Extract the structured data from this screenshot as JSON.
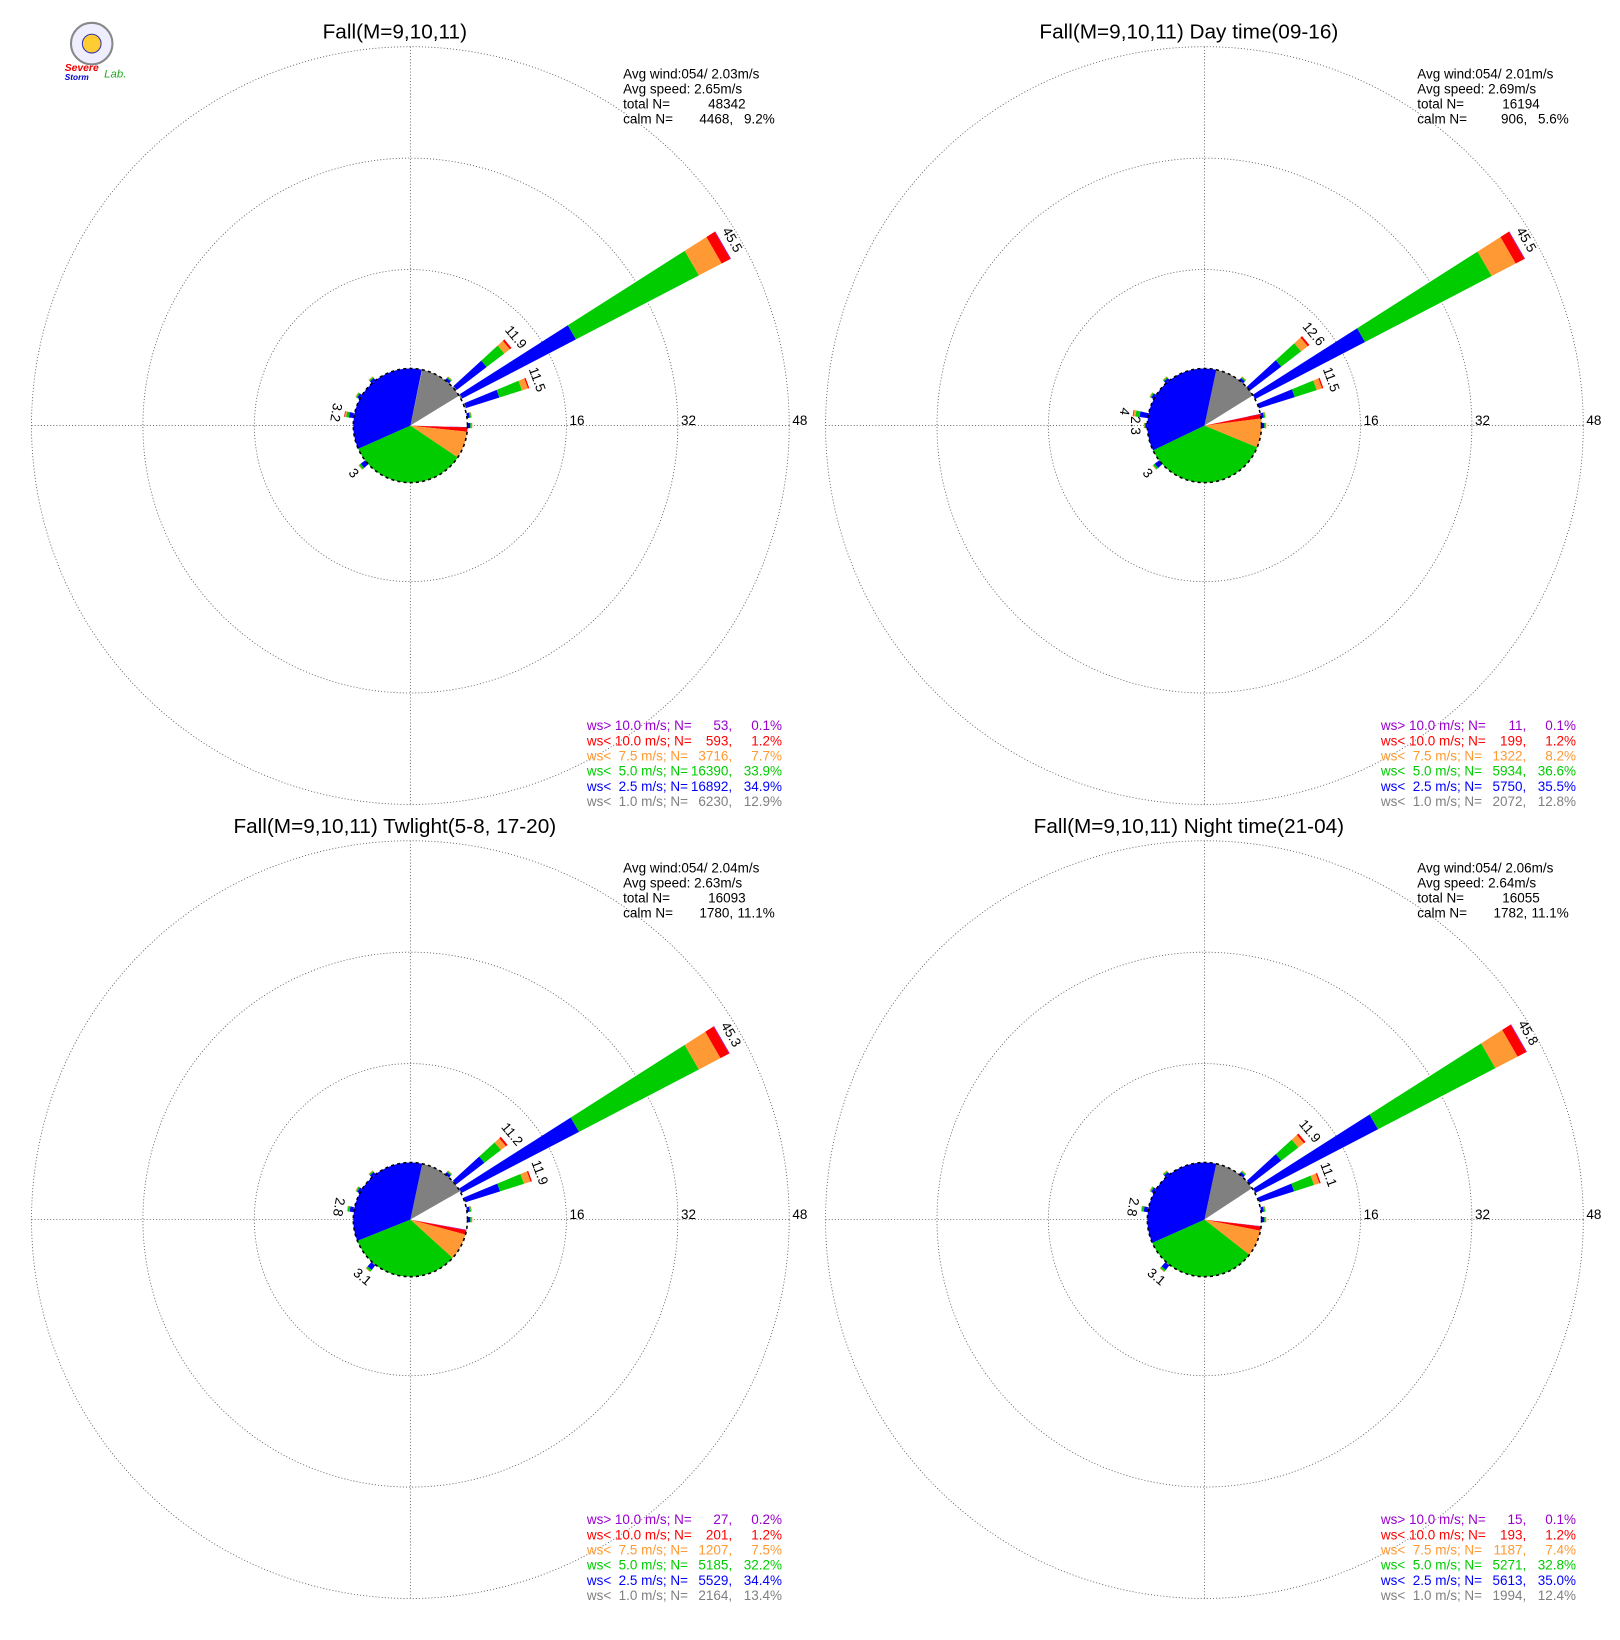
{
  "logo": {
    "line1": "Severe",
    "line2": "Storm",
    "line3": "Lab."
  },
  "chart_data": [
    {
      "type": "windrose",
      "title": "Fall(M=9,10,11)",
      "avg_wind": "Avg wind:054/ 2.03m/s",
      "avg_speed": "Avg speed: 2.65m/s",
      "total_label": "total N=",
      "total_n": 48342,
      "calm_label": "calm N=",
      "calm_n": 4468,
      "calm_n_label": "4468,",
      "calm_pct": 9.2,
      "calm_pct_label": "9.2%",
      "rlim": [
        0,
        48
      ],
      "rticks": [
        16,
        32,
        48
      ],
      "classes": [
        {
          "name": "ws> 10.0 m/s; N=",
          "color": "#9900cc",
          "n": 53,
          "n_label": "53,",
          "pct": 0.1,
          "pct_label": "0.1%"
        },
        {
          "name": "ws< 10.0 m/s; N=",
          "color": "#ff0000",
          "n": 593,
          "n_label": "593,",
          "pct": 1.2,
          "pct_label": "1.2%"
        },
        {
          "name": "ws<  7.5 m/s; N=",
          "color": "#ff9933",
          "n": 3716,
          "n_label": "3716,",
          "pct": 7.7,
          "pct_label": "7.7%"
        },
        {
          "name": "ws<  5.0 m/s; N=",
          "color": "#00cc00",
          "n": 16390,
          "n_label": "16390,",
          "pct": 33.9,
          "pct_label": "33.9%"
        },
        {
          "name": "ws<  2.5 m/s; N=",
          "color": "#0000ff",
          "n": 16892,
          "n_label": "16892,",
          "pct": 34.9,
          "pct_label": "34.9%"
        },
        {
          "name": "ws<  1.0 m/s; N=",
          "color": "#808080",
          "n": 6230,
          "n_label": "6230,",
          "pct": 12.9,
          "pct_label": "12.9%"
        }
      ],
      "petals": [
        {
          "direction": 60,
          "segments": [
            0.1,
            1.4,
            3.7,
            19.9,
            18.4,
            2.0
          ],
          "label": 45.5
        },
        {
          "direction": 50,
          "segments": [
            0,
            0.3,
            1.0,
            3.2,
            5.4,
            2.0
          ],
          "label": 11.9
        },
        {
          "direction": 70,
          "segments": [
            0,
            0.2,
            0.9,
            3.4,
            5.0,
            2.0
          ],
          "label": 11.5
        },
        {
          "direction": 280,
          "segments": [
            0,
            0.1,
            0.2,
            0.4,
            0.6,
            1.9
          ],
          "label": 3.2
        },
        {
          "direction": 230,
          "segments": [
            0,
            0,
            0.1,
            0.3,
            0.8,
            1.8
          ],
          "label": 3.0
        },
        {
          "direction": 40,
          "segments": [
            0,
            0,
            0.1,
            0.2,
            0.4,
            1.8
          ]
        },
        {
          "direction": 80,
          "segments": [
            0,
            0,
            0.1,
            0.2,
            0.4,
            1.8
          ]
        },
        {
          "direction": 90,
          "segments": [
            0,
            0,
            0.1,
            0.2,
            0.4,
            1.8
          ]
        },
        {
          "direction": 300,
          "segments": [
            0,
            0,
            0.1,
            0.2,
            0.4,
            1.8
          ]
        },
        {
          "direction": 320,
          "segments": [
            0,
            0,
            0.1,
            0.2,
            0.4,
            1.8
          ]
        }
      ]
    },
    {
      "type": "windrose",
      "title": "Fall(M=9,10,11) Day time(09-16)",
      "avg_wind": "Avg wind:054/ 2.01m/s",
      "avg_speed": "Avg speed: 2.69m/s",
      "total_label": "total N=",
      "total_n": 16194,
      "calm_label": "calm N=",
      "calm_n": 906,
      "calm_n_label": "906,",
      "calm_pct": 5.6,
      "calm_pct_label": "5.6%",
      "rlim": [
        0,
        48
      ],
      "rticks": [
        16,
        32,
        48
      ],
      "classes": [
        {
          "name": "ws> 10.0 m/s; N=",
          "color": "#9900cc",
          "n": 11,
          "n_label": "11,",
          "pct": 0.1,
          "pct_label": "0.1%"
        },
        {
          "name": "ws< 10.0 m/s; N=",
          "color": "#ff0000",
          "n": 199,
          "n_label": "199,",
          "pct": 1.2,
          "pct_label": "1.2%"
        },
        {
          "name": "ws<  7.5 m/s; N=",
          "color": "#ff9933",
          "n": 1322,
          "n_label": "1322,",
          "pct": 8.2,
          "pct_label": "8.2%"
        },
        {
          "name": "ws<  5.0 m/s; N=",
          "color": "#00cc00",
          "n": 5934,
          "n_label": "5934,",
          "pct": 36.6,
          "pct_label": "36.6%"
        },
        {
          "name": "ws<  2.5 m/s; N=",
          "color": "#0000ff",
          "n": 5750,
          "n_label": "5750,",
          "pct": 35.5,
          "pct_label": "35.5%"
        },
        {
          "name": "ws<  1.0 m/s; N=",
          "color": "#808080",
          "n": 2072,
          "n_label": "2072,",
          "pct": 12.8,
          "pct_label": "12.8%"
        }
      ],
      "petals": [
        {
          "direction": 60,
          "segments": [
            0.1,
            1.4,
            3.9,
            20.5,
            17.8,
            1.8
          ],
          "label": 45.5
        },
        {
          "direction": 50,
          "segments": [
            0,
            0.3,
            1.2,
            3.6,
            5.7,
            1.8
          ],
          "label": 12.6
        },
        {
          "direction": 70,
          "segments": [
            0,
            0.2,
            0.8,
            3.3,
            5.4,
            1.8
          ],
          "label": 11.5
        },
        {
          "direction": 280,
          "segments": [
            0,
            0.1,
            0.3,
            0.6,
            1.2,
            1.8
          ],
          "label": 4.0
        },
        {
          "direction": 270,
          "segments": [
            0,
            0,
            0.1,
            0.1,
            0.3,
            1.8
          ],
          "label": 2.3
        },
        {
          "direction": 230,
          "segments": [
            0,
            0,
            0.1,
            0.3,
            0.8,
            1.8
          ],
          "label": 3.0
        },
        {
          "direction": 40,
          "segments": [
            0,
            0,
            0.1,
            0.2,
            0.4,
            1.8
          ]
        },
        {
          "direction": 80,
          "segments": [
            0,
            0,
            0.1,
            0.2,
            0.4,
            1.8
          ]
        },
        {
          "direction": 90,
          "segments": [
            0,
            0,
            0.1,
            0.2,
            0.4,
            1.8
          ]
        },
        {
          "direction": 300,
          "segments": [
            0,
            0,
            0.1,
            0.2,
            0.4,
            1.8
          ]
        },
        {
          "direction": 320,
          "segments": [
            0,
            0,
            0.1,
            0.2,
            0.4,
            1.8
          ]
        }
      ]
    },
    {
      "type": "windrose",
      "title": "Fall(M=9,10,11) Twlight(5-8, 17-20)",
      "avg_wind": "Avg wind:054/ 2.04m/s",
      "avg_speed": "Avg speed: 2.63m/s",
      "total_label": "total N=",
      "total_n": 16093,
      "calm_label": "calm N=",
      "calm_n": 1780,
      "calm_n_label": "1780,",
      "calm_pct": 11.1,
      "calm_pct_label": "11.1%",
      "rlim": [
        0,
        48
      ],
      "rticks": [
        16,
        32,
        48
      ],
      "classes": [
        {
          "name": "ws> 10.0 m/s; N=",
          "color": "#9900cc",
          "n": 27,
          "n_label": "27,",
          "pct": 0.2,
          "pct_label": "0.2%"
        },
        {
          "name": "ws< 10.0 m/s; N=",
          "color": "#ff0000",
          "n": 201,
          "n_label": "201,",
          "pct": 1.2,
          "pct_label": "1.2%"
        },
        {
          "name": "ws<  7.5 m/s; N=",
          "color": "#ff9933",
          "n": 1207,
          "n_label": "1207,",
          "pct": 7.5,
          "pct_label": "7.5%"
        },
        {
          "name": "ws<  5.0 m/s; N=",
          "color": "#00cc00",
          "n": 5185,
          "n_label": "5185,",
          "pct": 32.2,
          "pct_label": "32.2%"
        },
        {
          "name": "ws<  2.5 m/s; N=",
          "color": "#0000ff",
          "n": 5529,
          "n_label": "5529,",
          "pct": 34.4,
          "pct_label": "34.4%"
        },
        {
          "name": "ws<  1.0 m/s; N=",
          "color": "#808080",
          "n": 2164,
          "n_label": "2164,",
          "pct": 13.4,
          "pct_label": "13.4%"
        }
      ],
      "petals": [
        {
          "direction": 60,
          "segments": [
            0.1,
            1.4,
            3.5,
            19.4,
            19.0,
            1.9
          ],
          "label": 45.3
        },
        {
          "direction": 50,
          "segments": [
            0,
            0.3,
            0.9,
            3.0,
            5.1,
            1.9
          ],
          "label": 11.2
        },
        {
          "direction": 70,
          "segments": [
            0,
            0.2,
            1.0,
            3.6,
            5.2,
            1.9
          ],
          "label": 11.9
        },
        {
          "direction": 280,
          "segments": [
            0,
            0,
            0.1,
            0.3,
            0.5,
            1.9
          ],
          "label": 2.8
        },
        {
          "direction": 220,
          "segments": [
            0,
            0,
            0.1,
            0.3,
            0.8,
            1.9
          ],
          "label": 3.1
        },
        {
          "direction": 40,
          "segments": [
            0,
            0,
            0.1,
            0.2,
            0.4,
            1.8
          ]
        },
        {
          "direction": 80,
          "segments": [
            0,
            0,
            0.1,
            0.2,
            0.4,
            1.8
          ]
        },
        {
          "direction": 90,
          "segments": [
            0,
            0,
            0.1,
            0.2,
            0.4,
            1.8
          ]
        },
        {
          "direction": 300,
          "segments": [
            0,
            0,
            0.1,
            0.2,
            0.4,
            1.8
          ]
        },
        {
          "direction": 320,
          "segments": [
            0,
            0,
            0.1,
            0.2,
            0.4,
            1.8
          ]
        }
      ]
    },
    {
      "type": "windrose",
      "title": "Fall(M=9,10,11) Night time(21-04)",
      "avg_wind": "Avg wind:054/ 2.06m/s",
      "avg_speed": "Avg speed: 2.64m/s",
      "total_label": "total N=",
      "total_n": 16055,
      "calm_label": "calm N=",
      "calm_n": 1782,
      "calm_n_label": "1782,",
      "calm_pct": 11.1,
      "calm_pct_label": "11.1%",
      "rlim": [
        0,
        48
      ],
      "rticks": [
        16,
        32,
        48
      ],
      "classes": [
        {
          "name": "ws> 10.0 m/s; N=",
          "color": "#9900cc",
          "n": 15,
          "n_label": "15,",
          "pct": 0.1,
          "pct_label": "0.1%"
        },
        {
          "name": "ws< 10.0 m/s; N=",
          "color": "#ff0000",
          "n": 193,
          "n_label": "193,",
          "pct": 1.2,
          "pct_label": "1.2%"
        },
        {
          "name": "ws<  7.5 m/s; N=",
          "color": "#ff9933",
          "n": 1187,
          "n_label": "1187,",
          "pct": 7.4,
          "pct_label": "7.4%"
        },
        {
          "name": "ws<  5.0 m/s; N=",
          "color": "#00cc00",
          "n": 5271,
          "n_label": "5271,",
          "pct": 32.8,
          "pct_label": "32.8%"
        },
        {
          "name": "ws<  2.5 m/s; N=",
          "color": "#0000ff",
          "n": 5613,
          "n_label": "5613,",
          "pct": 35.0,
          "pct_label": "35.0%"
        },
        {
          "name": "ws<  1.0 m/s; N=",
          "color": "#808080",
          "n": 1994,
          "n_label": "1994,",
          "pct": 12.4,
          "pct_label": "12.4%"
        }
      ],
      "petals": [
        {
          "direction": 60,
          "segments": [
            0.1,
            1.4,
            3.6,
            19.0,
            19.8,
            1.9
          ],
          "label": 45.8
        },
        {
          "direction": 50,
          "segments": [
            0,
            0.3,
            1.0,
            3.1,
            5.6,
            1.9
          ],
          "label": 11.9
        },
        {
          "direction": 70,
          "segments": [
            0,
            0.2,
            0.8,
            3.0,
            5.2,
            1.9
          ],
          "label": 11.1
        },
        {
          "direction": 280,
          "segments": [
            0,
            0,
            0.1,
            0.3,
            0.5,
            1.9
          ],
          "label": 2.8
        },
        {
          "direction": 220,
          "segments": [
            0,
            0,
            0.1,
            0.3,
            0.8,
            1.9
          ],
          "label": 3.1
        },
        {
          "direction": 40,
          "segments": [
            0,
            0,
            0.1,
            0.2,
            0.4,
            1.8
          ]
        },
        {
          "direction": 80,
          "segments": [
            0,
            0,
            0.1,
            0.2,
            0.4,
            1.8
          ]
        },
        {
          "direction": 90,
          "segments": [
            0,
            0,
            0.1,
            0.2,
            0.4,
            1.8
          ]
        },
        {
          "direction": 300,
          "segments": [
            0,
            0,
            0.1,
            0.2,
            0.4,
            1.8
          ]
        },
        {
          "direction": 320,
          "segments": [
            0,
            0,
            0.1,
            0.2,
            0.4,
            1.8
          ]
        }
      ]
    }
  ]
}
